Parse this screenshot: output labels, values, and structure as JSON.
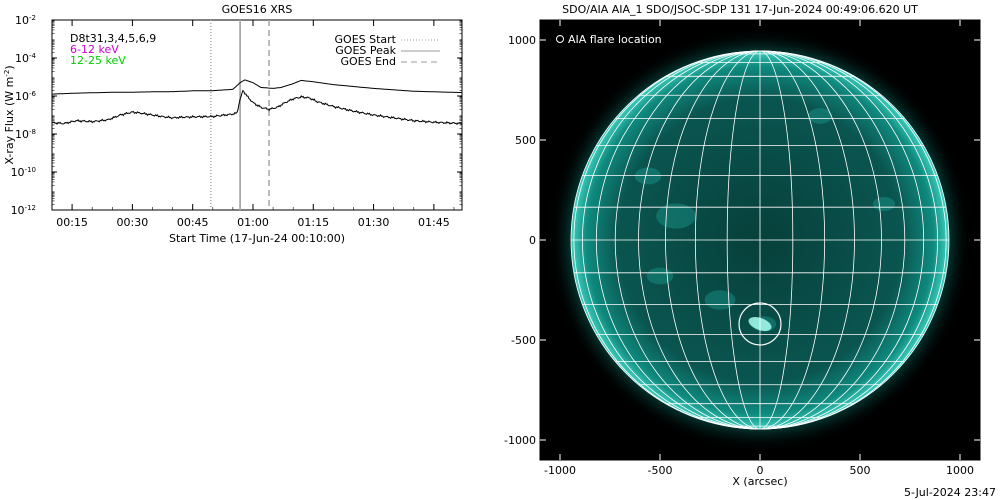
{
  "chart_data": [
    {
      "type": "line",
      "title": "GOES16 XRS",
      "xlabel": "Start Time (17-Jun-24 00:10:00)",
      "ylabel": "X-ray Flux (W m",
      "ylabel_sup": "-2",
      "ylabel_end": ")",
      "ylog": true,
      "ylim_exp": [
        -12,
        -2
      ],
      "y_ticks": [
        {
          "exp": -12,
          "base": "10",
          "sup": "-12"
        },
        {
          "exp": -10,
          "base": "10",
          "sup": "-10"
        },
        {
          "exp": -8,
          "base": "10",
          "sup": "-8"
        },
        {
          "exp": -6,
          "base": "10",
          "sup": "-6"
        },
        {
          "exp": -4,
          "base": "10",
          "sup": "-4"
        },
        {
          "exp": -2,
          "base": "10",
          "sup": "-2"
        }
      ],
      "xlim_min": [
        0,
        102
      ],
      "x_ticks": [
        {
          "min": 5,
          "label": "00:15"
        },
        {
          "min": 20,
          "label": "00:30"
        },
        {
          "min": 35,
          "label": "00:45"
        },
        {
          "min": 50,
          "label": "01:00"
        },
        {
          "min": 65,
          "label": "01:15"
        },
        {
          "min": 80,
          "label": "01:30"
        },
        {
          "min": 95,
          "label": "01:45"
        }
      ],
      "legend_left": [
        {
          "text": "D8t31,3,4,5,6,9",
          "color": "#000000"
        },
        {
          "text": "6-12 keV",
          "color": "#d000d0"
        },
        {
          "text": "12-25 keV",
          "color": "#00d000"
        }
      ],
      "legend_right": [
        {
          "text": "GOES Start",
          "color": "#999999",
          "dash": "1,2"
        },
        {
          "text": "GOES Peak",
          "color": "#999999",
          "dash": ""
        },
        {
          "text": "GOES End",
          "color": "#999999",
          "dash": "6,4"
        }
      ],
      "vlines": [
        {
          "name": "GOES Start",
          "min": 39.5,
          "color": "#aaaaaa",
          "dash": "1,2"
        },
        {
          "name": "GOES Peak",
          "min": 46.8,
          "color": "#aaaaaa",
          "dash": ""
        },
        {
          "name": "GOES End",
          "min": 54.0,
          "color": "#aaaaaa",
          "dash": "6,4"
        }
      ],
      "series": [
        {
          "color": "#000000",
          "log10": [
            [
              0,
              -5.9
            ],
            [
              6,
              -5.85
            ],
            [
              12,
              -5.82
            ],
            [
              16,
              -5.8
            ],
            [
              20,
              -5.8
            ],
            [
              25,
              -5.78
            ],
            [
              30,
              -5.77
            ],
            [
              36,
              -5.72
            ],
            [
              40,
              -5.72
            ],
            [
              45,
              -5.65
            ],
            [
              46.8,
              -5.3
            ],
            [
              48,
              -5.15
            ],
            [
              50,
              -5.3
            ],
            [
              52,
              -5.55
            ],
            [
              55,
              -5.6
            ],
            [
              57,
              -5.55
            ],
            [
              60,
              -5.35
            ],
            [
              62,
              -5.18
            ],
            [
              65,
              -5.25
            ],
            [
              70,
              -5.4
            ],
            [
              75,
              -5.5
            ],
            [
              80,
              -5.6
            ],
            [
              90,
              -5.75
            ],
            [
              102,
              -5.82
            ]
          ]
        },
        {
          "color": "#000000",
          "log10": [
            [
              0,
              -7.4
            ],
            [
              3,
              -7.45
            ],
            [
              6,
              -7.3
            ],
            [
              10,
              -7.35
            ],
            [
              14,
              -7.25
            ],
            [
              17,
              -7.0
            ],
            [
              20,
              -6.85
            ],
            [
              22,
              -6.9
            ],
            [
              25,
              -7.0
            ],
            [
              28,
              -7.1
            ],
            [
              30,
              -7.15
            ],
            [
              32,
              -7.12
            ],
            [
              35,
              -7.1
            ],
            [
              40,
              -7.08
            ],
            [
              45,
              -6.95
            ],
            [
              46,
              -6.9
            ],
            [
              46.8,
              -6.2
            ],
            [
              47.5,
              -5.7
            ],
            [
              48.5,
              -6.0
            ],
            [
              50,
              -6.35
            ],
            [
              52,
              -6.6
            ],
            [
              54,
              -6.7
            ],
            [
              56,
              -6.6
            ],
            [
              58,
              -6.35
            ],
            [
              60,
              -6.15
            ],
            [
              62,
              -6.05
            ],
            [
              64,
              -6.1
            ],
            [
              66,
              -6.3
            ],
            [
              70,
              -6.55
            ],
            [
              75,
              -6.8
            ],
            [
              80,
              -7.0
            ],
            [
              85,
              -7.15
            ],
            [
              90,
              -7.3
            ],
            [
              95,
              -7.38
            ],
            [
              102,
              -7.45
            ]
          ]
        }
      ]
    },
    {
      "type": "scatter",
      "title": "SDO/AIA AIA_1 SDO/JSOC-SDP 131 17-Jun-2024 00:49:06.620 UT",
      "xlabel": "X (arcsec)",
      "ylabel": "",
      "xlim": [
        -1100,
        1100
      ],
      "ylim": [
        -1100,
        1100
      ],
      "x_ticks": [
        -1000,
        -500,
        0,
        500,
        1000
      ],
      "y_ticks": [
        -1000,
        -500,
        0,
        500,
        1000
      ],
      "solar_radius_arcsec": 945,
      "grid_step_deg": 10,
      "legend": "AIA flare location",
      "flare_location": {
        "x": 0,
        "y": -420
      },
      "flare_circle_radius_arcsec": 100,
      "disk_color": "#0a9a8c"
    }
  ],
  "footer": {
    "date_stamp": "5-Jul-2024 23:47"
  }
}
